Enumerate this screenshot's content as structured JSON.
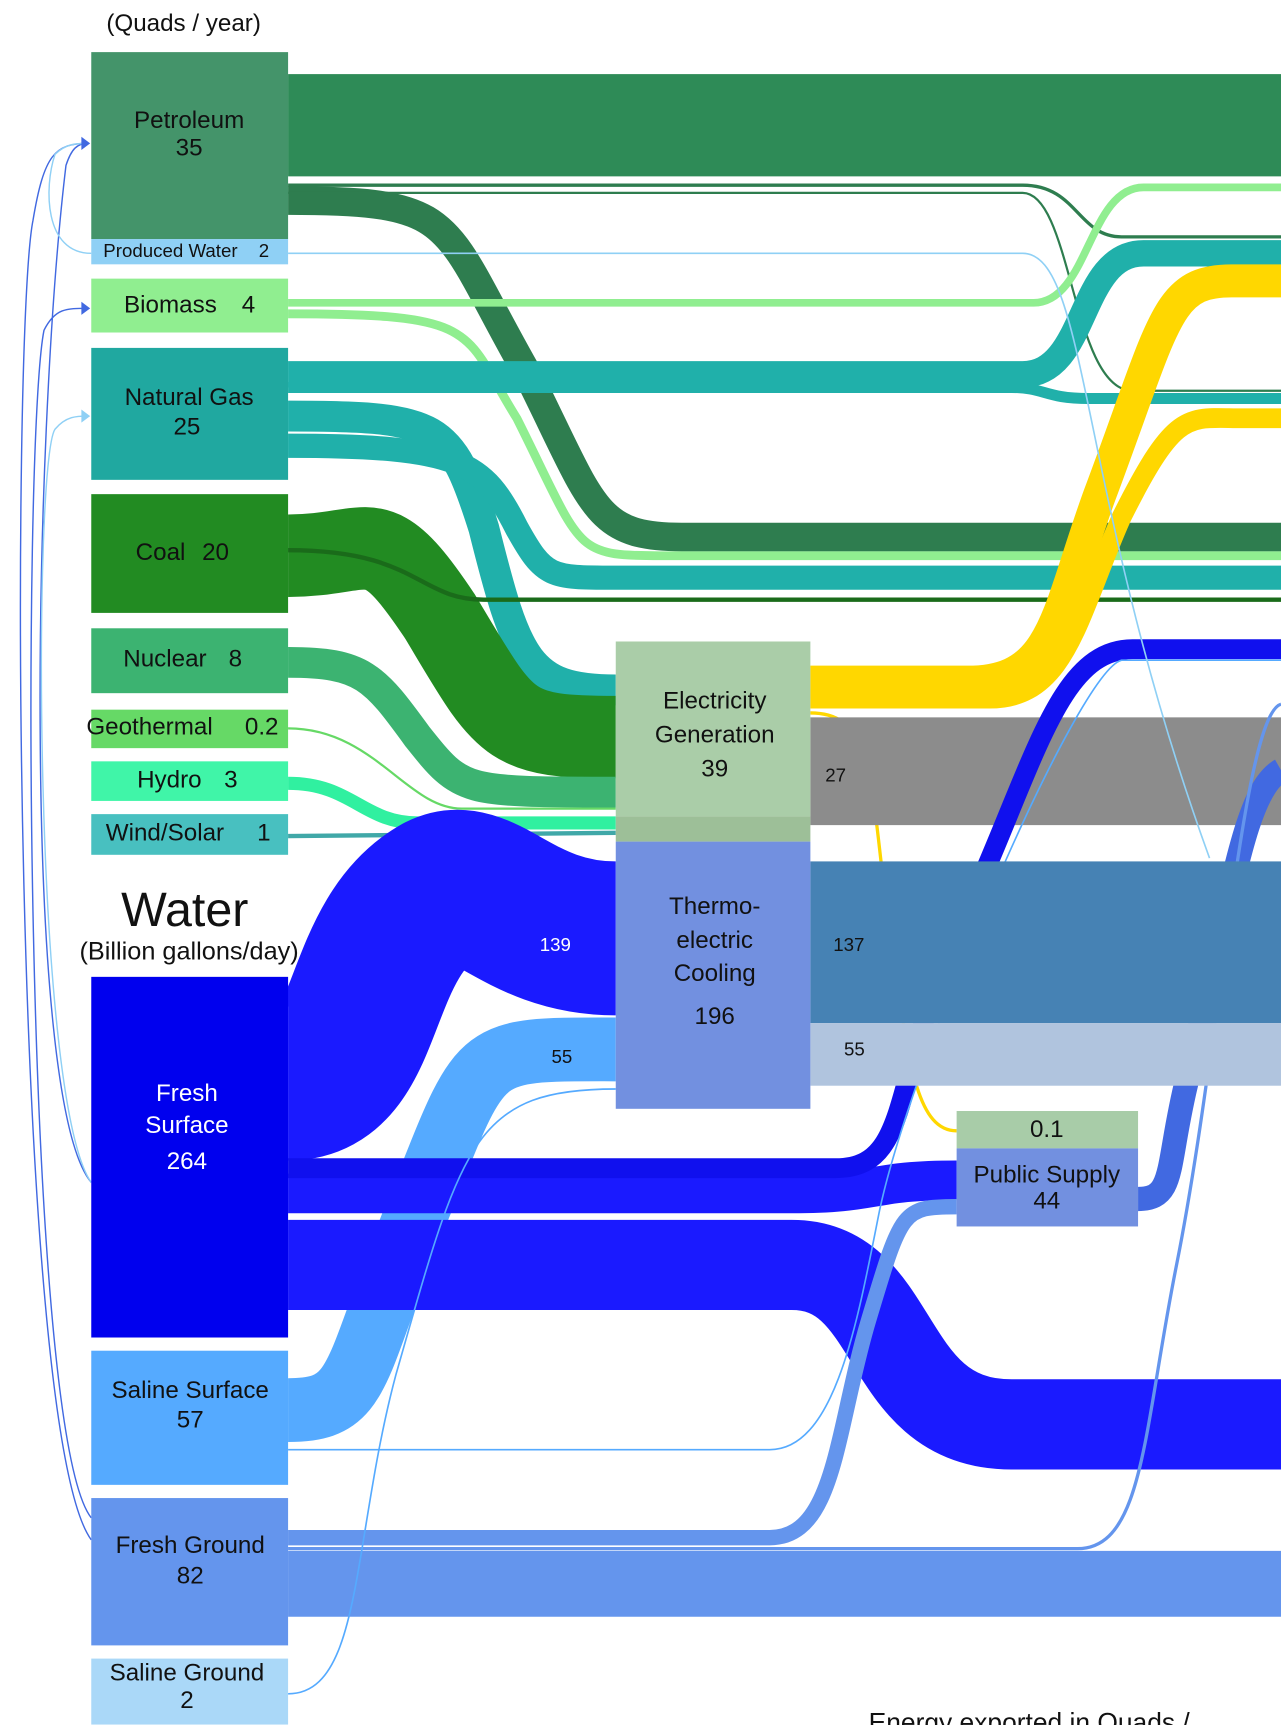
{
  "header": {
    "energy_unit": "(Quads / year)",
    "water_title": "Water",
    "water_unit": "(Billion gallons/day)",
    "footer": "Energy exported in Quads /"
  },
  "nodes": [
    {
      "label": "Petroleum",
      "value": 35
    },
    {
      "label": "Produced Water",
      "value": 2
    },
    {
      "label": "Biomass",
      "value": 4
    },
    {
      "label": "Natural Gas",
      "value": 25
    },
    {
      "label": "Coal",
      "value": 20
    },
    {
      "label": "Nuclear",
      "value": 8
    },
    {
      "label": "Geothermal",
      "value": 0.2
    },
    {
      "label": "Hydro",
      "value": 3
    },
    {
      "label": "Wind/Solar",
      "value": 1
    },
    {
      "label": [
        "Electricity",
        "Generation"
      ],
      "value": 39
    },
    {
      "label": [
        "Thermo-",
        "electric",
        "Cooling"
      ],
      "value": 196
    },
    {
      "label": [
        "Fresh",
        "Surface"
      ],
      "value": 264
    },
    {
      "label": "Saline Surface",
      "value": 57
    },
    {
      "label": "Fresh Ground",
      "value": 82
    },
    {
      "label": "Saline Ground",
      "value": 2
    },
    {
      "label": "Public Supply",
      "value": 44
    }
  ],
  "public_supply_energy": 0.1,
  "flow_labels": [
    139,
    55,
    137,
    55,
    27
  ]
}
